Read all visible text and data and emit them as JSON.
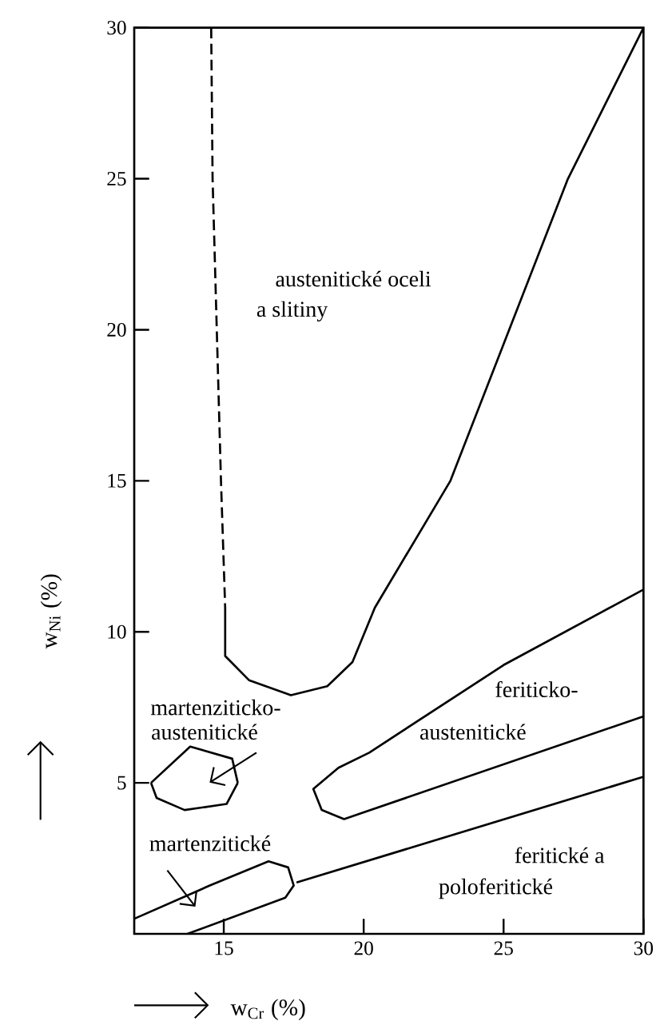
{
  "chart_data": {
    "type": "line",
    "xlabel": "w$_{Cr}$  (%)",
    "ylabel": "w$_{Ni}$  (%)",
    "xlim": [
      11.8,
      30
    ],
    "ylim": [
      0,
      30
    ],
    "xticks": [
      15,
      20,
      25,
      30
    ],
    "yticks": [
      5,
      10,
      15,
      20,
      25,
      30
    ],
    "marker": "none",
    "series": [
      {
        "color": "#000000",
        "line_style": "dashed",
        "x": [
          14.55,
          14.6,
          14.75,
          14.9,
          15.05
        ],
        "values": [
          30,
          25,
          20,
          15,
          10.8
        ]
      },
      {
        "color": "#000000",
        "line_style": "solid",
        "x": [
          15.05,
          15.05,
          15.9,
          17.4,
          18.7,
          19.6,
          20.4,
          23.1,
          27.3,
          30
        ],
        "values": [
          10.8,
          9.2,
          8.4,
          7.9,
          8.2,
          9.0,
          10.8,
          15,
          25,
          30
        ]
      },
      {
        "color": "#000000",
        "line_style": "solid",
        "x": [
          30,
          25,
          20.2,
          19.1,
          18.2,
          18.5,
          19.3,
          30
        ],
        "values": [
          11.4,
          8.9,
          6.0,
          5.5,
          4.8,
          4.1,
          3.8,
          7.2
        ]
      },
      {
        "color": "#000000",
        "line_style": "solid",
        "x": [
          11.8,
          14.5,
          16.6,
          17.3,
          17.5,
          17.2,
          13.7
        ],
        "values": [
          0.5,
          1.6,
          2.4,
          2.2,
          1.6,
          1.2,
          0
        ]
      },
      {
        "color": "#000000",
        "line_style": "solid",
        "x": [
          17.6,
          30
        ],
        "values": [
          1.7,
          5.2
        ]
      },
      {
        "color": "#000000",
        "line_style": "solid",
        "x": [
          12.4,
          12.6,
          13.6,
          15.1,
          15.5
        ],
        "values": [
          5.0,
          4.5,
          4.1,
          4.3,
          5.0
        ]
      },
      {
        "color": "#000000",
        "line_style": "solid",
        "x": [
          12.4,
          13.8,
          15.3,
          15.5
        ],
        "values": [
          5.0,
          6.2,
          5.8,
          5.0
        ]
      }
    ],
    "annotations": [
      "austenitické  oceli",
      "a  slitiny",
      "feriticko-",
      "austenitické",
      "martenziticko-",
      "austenitické",
      "feritické   a",
      "poloferitické",
      "martenzitické"
    ]
  }
}
